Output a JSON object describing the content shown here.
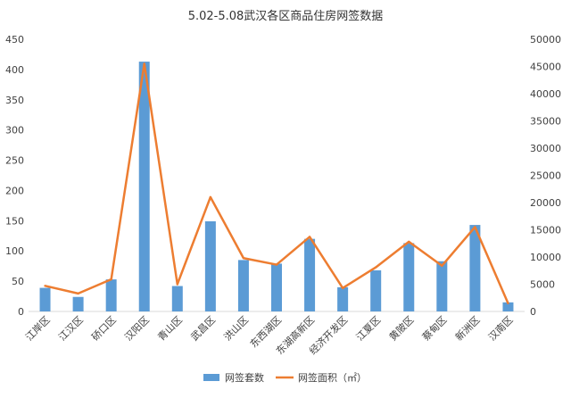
{
  "chart_data": {
    "type": "bar",
    "title": "5.02-5.08武汉各区商品住房网签数据",
    "categories": [
      "江岸区",
      "江汉区",
      "硚口区",
      "汉阳区",
      "青山区",
      "武昌区",
      "洪山区",
      "东西湖区",
      "东湖高新区",
      "经济开发区",
      "江夏区",
      "黄陂区",
      "蔡甸区",
      "新洲区",
      "汉南区"
    ],
    "series": [
      {
        "name": "网签套数",
        "type": "bar",
        "axis": "left",
        "color": "#5B9BD5",
        "values": [
          39,
          24,
          53,
          413,
          42,
          149,
          85,
          79,
          120,
          40,
          68,
          113,
          83,
          143,
          15
        ]
      },
      {
        "name": "网签面积（㎡）",
        "type": "line",
        "axis": "right",
        "color": "#ED7D31",
        "values": [
          4700,
          3300,
          5900,
          45500,
          5000,
          21000,
          9800,
          8600,
          13700,
          4300,
          8100,
          12800,
          8400,
          15500,
          1500
        ]
      }
    ],
    "y_left": {
      "min": 0,
      "max": 450,
      "step": 50,
      "ticks": [
        "0",
        "50",
        "100",
        "150",
        "200",
        "250",
        "300",
        "350",
        "400",
        "450"
      ]
    },
    "y_right": {
      "min": 0,
      "max": 50000,
      "step": 5000,
      "ticks": [
        "0",
        "5000",
        "10000",
        "15000",
        "20000",
        "25000",
        "30000",
        "35000",
        "40000",
        "45000",
        "50000"
      ]
    },
    "grid": false,
    "legend": "bottom"
  }
}
